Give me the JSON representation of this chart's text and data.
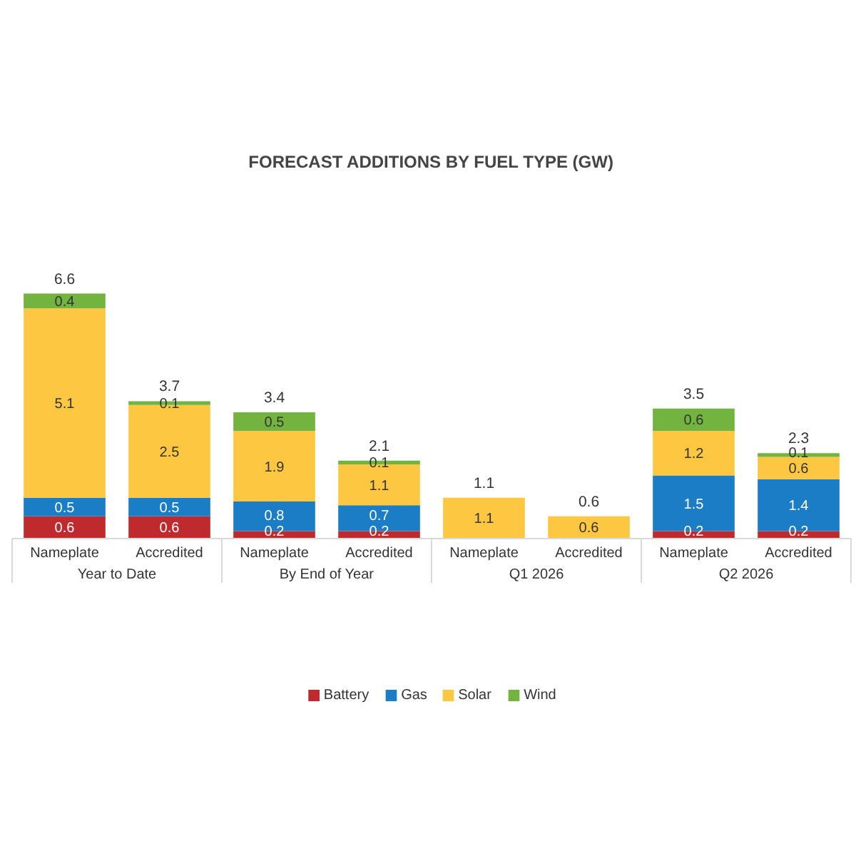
{
  "chart_data": {
    "type": "bar",
    "title": "FORECAST ADDITIONS BY FUEL TYPE (GW)",
    "categories": [
      "Nameplate",
      "Accredited",
      "Nameplate",
      "Accredited",
      "Nameplate",
      "Accredited",
      "Nameplate",
      "Accredited"
    ],
    "annotations": [
      "Year to Date",
      "By End of Year",
      "Q1 2026",
      "Q2 2026"
    ],
    "stacked": true,
    "series": [
      {
        "name": "Battery",
        "color": "#be2a2e",
        "values": [
          0.6,
          0.6,
          0.2,
          0.2,
          null,
          null,
          0.2,
          0.2
        ]
      },
      {
        "name": "Gas",
        "color": "#1a7dc6",
        "values": [
          0.5,
          0.5,
          0.8,
          0.7,
          null,
          null,
          1.5,
          1.4
        ]
      },
      {
        "name": "Solar",
        "color": "#fdc742",
        "values": [
          5.1,
          2.5,
          1.9,
          1.1,
          1.1,
          0.6,
          1.2,
          0.6
        ]
      },
      {
        "name": "Wind",
        "color": "#72b43f",
        "values": [
          0.4,
          0.1,
          0.5,
          0.1,
          null,
          null,
          0.6,
          0.1
        ]
      }
    ],
    "data_labels": true,
    "totals": [
      "6.6",
      "3.7",
      "3.4",
      "2.1",
      "1.1",
      "0.6",
      "3.5",
      "2.3"
    ],
    "legend": "bottom",
    "grid": false
  }
}
